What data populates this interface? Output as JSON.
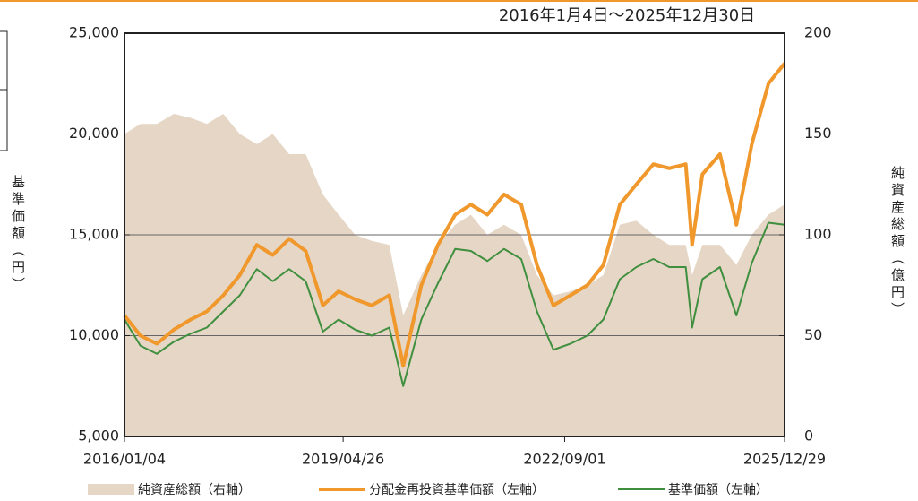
{
  "chart_data": {
    "type": "line",
    "subtitle": "2016年1月4日～2025年12月30日",
    "y_label": "基準価額（円）",
    "y2_label": "純資産総額（億円）",
    "x": [
      "2016/01/04",
      "2016/04/01",
      "2016/07/01",
      "2016/10/03",
      "2017/01/04",
      "2017/04/03",
      "2017/07/03",
      "2017/10/02",
      "2018/01/04",
      "2018/04/02",
      "2018/07/02",
      "2018/10/01",
      "2019/01/04",
      "2019/04/01",
      "2019/07/01",
      "2019/10/01",
      "2020/01/06",
      "2020/03/23",
      "2020/07/01",
      "2020/10/01",
      "2021/01/04",
      "2021/04/01",
      "2021/07/01",
      "2021/10/01",
      "2022/01/04",
      "2022/04/01",
      "2022/07/01",
      "2022/10/03",
      "2023/01/04",
      "2023/04/03",
      "2023/07/03",
      "2023/10/02",
      "2024/01/04",
      "2024/04/01",
      "2024/07/01",
      "2024/08/05",
      "2024/10/01",
      "2025/01/06",
      "2025/04/07",
      "2025/07/01",
      "2025/10/01",
      "2025/12/29"
    ],
    "xlim": [
      "2016/01/04",
      "2025/12/29"
    ],
    "xticks": [
      "2016/01/04",
      "2019/04/26",
      "2022/09/01",
      "2025/12/29"
    ],
    "ylim": [
      5000,
      25000
    ],
    "yticks": [
      {
        "value": 5000,
        "label": "5,000"
      },
      {
        "value": 10000,
        "label": "10,000"
      },
      {
        "value": 15000,
        "label": "15,000"
      },
      {
        "value": 20000,
        "label": "20,000"
      },
      {
        "value": 25000,
        "label": "25,000"
      }
    ],
    "y2lim": [
      0,
      200
    ],
    "y2ticks": [
      0,
      50,
      100,
      150,
      200
    ],
    "grid": true,
    "series": [
      {
        "name": "純資産総額（右軸）",
        "color": "#e5d6c5",
        "axis": "y2",
        "kind": "area",
        "values": [
          150,
          155,
          155,
          160,
          158,
          155,
          160,
          150,
          145,
          150,
          140,
          140,
          120,
          110,
          100,
          97,
          95,
          60,
          80,
          95,
          105,
          110,
          100,
          105,
          100,
          80,
          70,
          72,
          75,
          80,
          105,
          107,
          100,
          95,
          95,
          80,
          95,
          95,
          85,
          100,
          110,
          115
        ]
      },
      {
        "name": "分配金再投資基準価額（左軸）",
        "color": "#f0982c",
        "kind": "line",
        "values": [
          11000,
          10000,
          9600,
          10300,
          10800,
          11200,
          12000,
          13000,
          14500,
          14000,
          14800,
          14200,
          11500,
          12200,
          11800,
          11500,
          12000,
          8500,
          12500,
          14500,
          16000,
          16500,
          16000,
          17000,
          16500,
          13500,
          11500,
          12000,
          12500,
          13500,
          16500,
          17500,
          18500,
          18300,
          18500,
          14500,
          18000,
          19000,
          15500,
          19500,
          22500,
          23500
        ]
      },
      {
        "name": "基準価額（左軸）",
        "color": "#3f8f3f",
        "kind": "line",
        "values": [
          10800,
          9500,
          9100,
          9700,
          10100,
          10400,
          11200,
          12000,
          13300,
          12700,
          13300,
          12700,
          10200,
          10800,
          10300,
          10000,
          10400,
          7500,
          10800,
          12600,
          14300,
          14200,
          13700,
          14300,
          13800,
          11200,
          9300,
          9600,
          10000,
          10800,
          12800,
          13400,
          13800,
          13400,
          13400,
          10400,
          12800,
          13400,
          11000,
          13600,
          15600,
          15500
        ]
      }
    ]
  }
}
